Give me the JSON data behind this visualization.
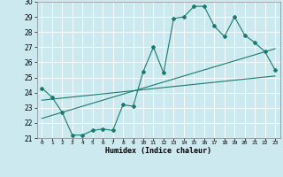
{
  "xlabel": "Humidex (Indice chaleur)",
  "xlim": [
    -0.5,
    23.5
  ],
  "ylim": [
    21,
    30
  ],
  "yticks": [
    21,
    22,
    23,
    24,
    25,
    26,
    27,
    28,
    29,
    30
  ],
  "xticks": [
    0,
    1,
    2,
    3,
    4,
    5,
    6,
    7,
    8,
    9,
    10,
    11,
    12,
    13,
    14,
    15,
    16,
    17,
    18,
    19,
    20,
    21,
    22,
    23
  ],
  "bg_color": "#cce9f0",
  "grid_color": "#ffffff",
  "line_color": "#1a7a6e",
  "line1_x": [
    0,
    1,
    2,
    3,
    4,
    5,
    6,
    7,
    8,
    9,
    10,
    11,
    12,
    13,
    14,
    15,
    16,
    17,
    18,
    19,
    20,
    21,
    22,
    23
  ],
  "line1_y": [
    24.3,
    23.7,
    22.7,
    21.2,
    21.2,
    21.5,
    21.6,
    21.5,
    23.2,
    23.1,
    25.4,
    27.0,
    25.3,
    28.9,
    29.0,
    29.7,
    29.7,
    28.4,
    27.7,
    29.0,
    27.8,
    27.3,
    26.7,
    25.5
  ],
  "line2_x": [
    0,
    23
  ],
  "line2_y": [
    23.5,
    25.1
  ],
  "line3_x": [
    0,
    23
  ],
  "line3_y": [
    22.3,
    26.9
  ]
}
